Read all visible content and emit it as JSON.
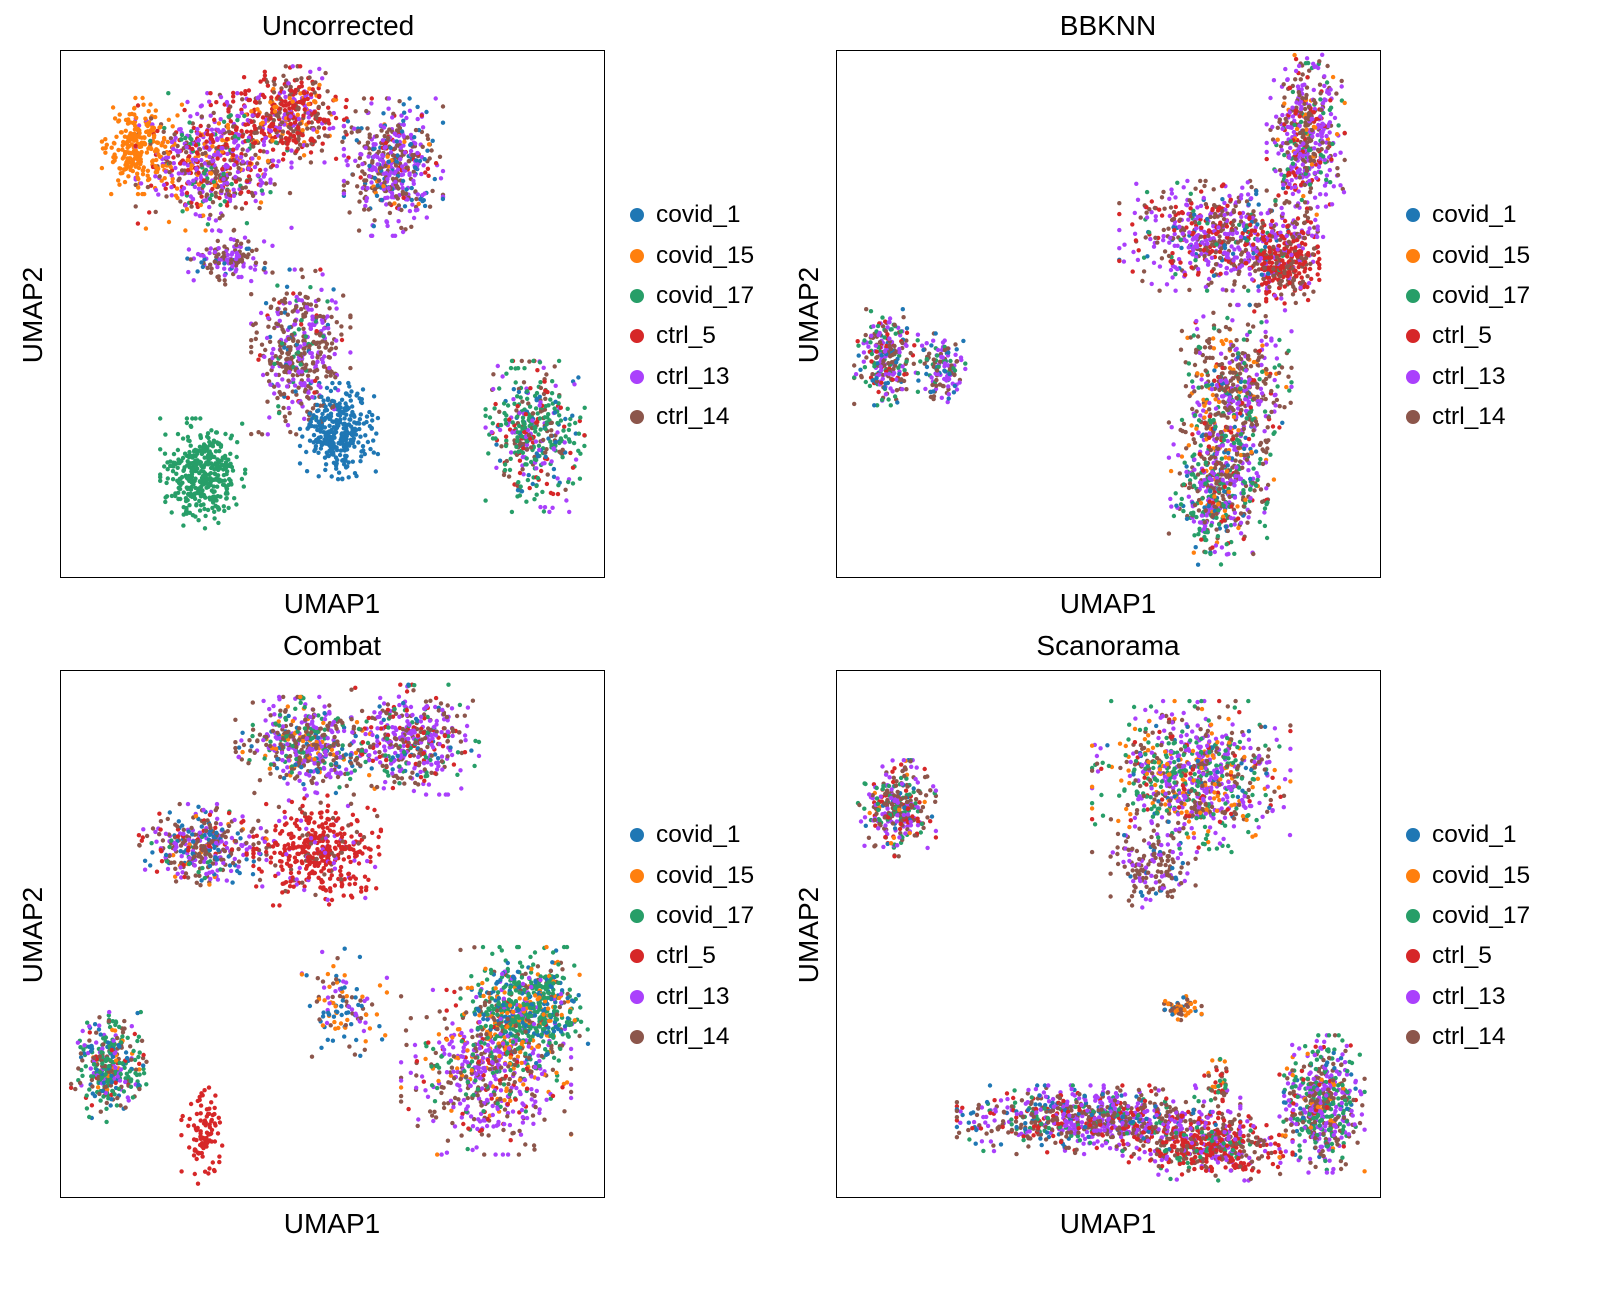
{
  "chart_data": [
    {
      "type": "scatter",
      "title": "Uncorrected",
      "xlabel": "UMAP1",
      "ylabel": "UMAP2",
      "legend": "right",
      "grid": false,
      "clusters": [
        {
          "cx": 0.14,
          "cy": 0.82,
          "rx": 0.05,
          "ry": 0.07,
          "n": 240,
          "mix": {
            "covid_15": 1
          }
        },
        {
          "cx": 0.26,
          "cy": 0.2,
          "rx": 0.06,
          "ry": 0.08,
          "n": 380,
          "mix": {
            "covid_17": 1
          }
        },
        {
          "cx": 0.51,
          "cy": 0.28,
          "rx": 0.055,
          "ry": 0.07,
          "n": 320,
          "mix": {
            "covid_1": 1
          }
        },
        {
          "cx": 0.44,
          "cy": 0.43,
          "rx": 0.07,
          "ry": 0.12,
          "n": 450,
          "mix": {
            "ctrl_14": 0.55,
            "ctrl_13": 0.3,
            "covid_1": 0.05,
            "ctrl_5": 0.05,
            "covid_17": 0.05
          }
        },
        {
          "cx": 0.31,
          "cy": 0.61,
          "rx": 0.06,
          "ry": 0.04,
          "n": 130,
          "mix": {
            "ctrl_13": 0.5,
            "ctrl_14": 0.4,
            "covid_1": 0.1
          }
        },
        {
          "cx": 0.28,
          "cy": 0.79,
          "rx": 0.11,
          "ry": 0.1,
          "n": 650,
          "mix": {
            "ctrl_13": 0.35,
            "ctrl_14": 0.25,
            "ctrl_5": 0.2,
            "covid_17": 0.1,
            "covid_15": 0.1
          }
        },
        {
          "cx": 0.42,
          "cy": 0.88,
          "rx": 0.08,
          "ry": 0.07,
          "n": 420,
          "mix": {
            "ctrl_5": 0.5,
            "ctrl_14": 0.25,
            "ctrl_13": 0.15,
            "covid_15": 0.1
          }
        },
        {
          "cx": 0.61,
          "cy": 0.78,
          "rx": 0.07,
          "ry": 0.1,
          "n": 480,
          "mix": {
            "ctrl_13": 0.4,
            "ctrl_14": 0.35,
            "covid_1": 0.15,
            "covid_15": 0.05,
            "ctrl_5": 0.05
          }
        },
        {
          "cx": 0.87,
          "cy": 0.27,
          "rx": 0.07,
          "ry": 0.11,
          "n": 420,
          "mix": {
            "covid_17": 0.4,
            "ctrl_14": 0.2,
            "ctrl_13": 0.15,
            "ctrl_5": 0.15,
            "covid_1": 0.1
          }
        }
      ]
    },
    {
      "type": "scatter",
      "title": "BBKNN",
      "xlabel": "UMAP1",
      "ylabel": "UMAP2",
      "legend": "right",
      "grid": false,
      "clusters": [
        {
          "cx": 0.09,
          "cy": 0.42,
          "rx": 0.045,
          "ry": 0.07,
          "n": 260,
          "mix": {
            "ctrl_14": 0.3,
            "ctrl_13": 0.25,
            "covid_17": 0.2,
            "ctrl_5": 0.15,
            "covid_1": 0.1
          }
        },
        {
          "cx": 0.19,
          "cy": 0.4,
          "rx": 0.035,
          "ry": 0.05,
          "n": 140,
          "mix": {
            "ctrl_13": 0.4,
            "ctrl_14": 0.3,
            "covid_17": 0.15,
            "covid_1": 0.15
          }
        },
        {
          "cx": 0.86,
          "cy": 0.83,
          "rx": 0.055,
          "ry": 0.14,
          "n": 520,
          "mix": {
            "ctrl_13": 0.4,
            "ctrl_14": 0.3,
            "ctrl_5": 0.15,
            "covid_17": 0.1,
            "covid_15": 0.05
          }
        },
        {
          "cx": 0.7,
          "cy": 0.65,
          "rx": 0.14,
          "ry": 0.08,
          "n": 650,
          "mix": {
            "ctrl_13": 0.4,
            "ctrl_14": 0.3,
            "ctrl_5": 0.2,
            "covid_17": 0.05,
            "covid_1": 0.05
          }
        },
        {
          "cx": 0.82,
          "cy": 0.6,
          "rx": 0.05,
          "ry": 0.06,
          "n": 300,
          "mix": {
            "ctrl_5": 0.6,
            "ctrl_14": 0.3,
            "ctrl_13": 0.1
          }
        },
        {
          "cx": 0.73,
          "cy": 0.35,
          "rx": 0.08,
          "ry": 0.13,
          "n": 550,
          "mix": {
            "ctrl_14": 0.4,
            "ctrl_13": 0.25,
            "covid_17": 0.15,
            "covid_15": 0.1,
            "covid_1": 0.05,
            "ctrl_5": 0.05
          }
        },
        {
          "cx": 0.7,
          "cy": 0.17,
          "rx": 0.07,
          "ry": 0.11,
          "n": 500,
          "mix": {
            "ctrl_14": 0.3,
            "covid_17": 0.25,
            "ctrl_13": 0.25,
            "covid_1": 0.1,
            "covid_15": 0.05,
            "ctrl_5": 0.05
          }
        }
      ]
    },
    {
      "type": "scatter",
      "title": "Combat",
      "xlabel": "UMAP1",
      "ylabel": "UMAP2",
      "legend": "right",
      "grid": false,
      "clusters": [
        {
          "cx": 0.09,
          "cy": 0.25,
          "rx": 0.055,
          "ry": 0.08,
          "n": 350,
          "mix": {
            "covid_17": 0.4,
            "ctrl_14": 0.2,
            "ctrl_13": 0.15,
            "covid_1": 0.15,
            "ctrl_5": 0.05,
            "covid_15": 0.05
          }
        },
        {
          "cx": 0.26,
          "cy": 0.12,
          "rx": 0.03,
          "ry": 0.07,
          "n": 100,
          "mix": {
            "ctrl_5": 1
          }
        },
        {
          "cx": 0.26,
          "cy": 0.67,
          "rx": 0.09,
          "ry": 0.06,
          "n": 380,
          "mix": {
            "ctrl_14": 0.4,
            "ctrl_13": 0.25,
            "covid_1": 0.15,
            "ctrl_5": 0.1,
            "covid_17": 0.05,
            "covid_15": 0.05
          }
        },
        {
          "cx": 0.47,
          "cy": 0.66,
          "rx": 0.09,
          "ry": 0.08,
          "n": 420,
          "mix": {
            "ctrl_5": 0.8,
            "ctrl_14": 0.1,
            "ctrl_13": 0.1
          }
        },
        {
          "cx": 0.45,
          "cy": 0.86,
          "rx": 0.1,
          "ry": 0.07,
          "n": 500,
          "mix": {
            "ctrl_13": 0.3,
            "ctrl_14": 0.3,
            "covid_17": 0.2,
            "covid_1": 0.1,
            "covid_15": 0.1
          }
        },
        {
          "cx": 0.65,
          "cy": 0.87,
          "rx": 0.09,
          "ry": 0.08,
          "n": 420,
          "mix": {
            "ctrl_13": 0.4,
            "ctrl_14": 0.25,
            "covid_17": 0.15,
            "ctrl_5": 0.15,
            "covid_1": 0.05
          }
        },
        {
          "cx": 0.52,
          "cy": 0.37,
          "rx": 0.06,
          "ry": 0.08,
          "n": 120,
          "mix": {
            "covid_1": 0.3,
            "covid_15": 0.25,
            "ctrl_14": 0.25,
            "ctrl_13": 0.2
          }
        },
        {
          "cx": 0.85,
          "cy": 0.36,
          "rx": 0.09,
          "ry": 0.09,
          "n": 650,
          "mix": {
            "covid_17": 0.5,
            "covid_1": 0.2,
            "covid_15": 0.15,
            "ctrl_14": 0.1,
            "ctrl_13": 0.05
          }
        },
        {
          "cx": 0.78,
          "cy": 0.24,
          "rx": 0.12,
          "ry": 0.12,
          "n": 600,
          "mix": {
            "ctrl_13": 0.4,
            "ctrl_14": 0.3,
            "ctrl_5": 0.1,
            "covid_15": 0.1,
            "covid_17": 0.1
          }
        }
      ]
    },
    {
      "type": "scatter",
      "title": "Scanorama",
      "xlabel": "UMAP1",
      "ylabel": "UMAP2",
      "legend": "right",
      "grid": false,
      "clusters": [
        {
          "cx": 0.11,
          "cy": 0.74,
          "rx": 0.055,
          "ry": 0.07,
          "n": 320,
          "mix": {
            "ctrl_14": 0.3,
            "ctrl_13": 0.25,
            "covid_17": 0.2,
            "ctrl_5": 0.15,
            "covid_15": 0.05,
            "covid_1": 0.05
          }
        },
        {
          "cx": 0.65,
          "cy": 0.8,
          "rx": 0.14,
          "ry": 0.11,
          "n": 850,
          "mix": {
            "ctrl_13": 0.3,
            "covid_17": 0.25,
            "ctrl_14": 0.2,
            "covid_15": 0.15,
            "covid_1": 0.05,
            "ctrl_5": 0.05
          }
        },
        {
          "cx": 0.58,
          "cy": 0.63,
          "rx": 0.06,
          "ry": 0.06,
          "n": 160,
          "mix": {
            "ctrl_14": 0.6,
            "ctrl_13": 0.3,
            "covid_1": 0.1
          }
        },
        {
          "cx": 0.63,
          "cy": 0.36,
          "rx": 0.03,
          "ry": 0.02,
          "n": 60,
          "mix": {
            "covid_15": 0.4,
            "covid_1": 0.3,
            "ctrl_14": 0.3
          }
        },
        {
          "cx": 0.7,
          "cy": 0.22,
          "rx": 0.02,
          "ry": 0.04,
          "n": 40,
          "mix": {
            "covid_17": 0.3,
            "ctrl_14": 0.3,
            "ctrl_5": 0.2,
            "covid_15": 0.2
          }
        },
        {
          "cx": 0.48,
          "cy": 0.15,
          "rx": 0.2,
          "ry": 0.05,
          "n": 900,
          "mix": {
            "ctrl_13": 0.35,
            "ctrl_14": 0.3,
            "ctrl_5": 0.15,
            "covid_1": 0.1,
            "covid_17": 0.1
          }
        },
        {
          "cx": 0.68,
          "cy": 0.1,
          "rx": 0.12,
          "ry": 0.05,
          "n": 500,
          "mix": {
            "ctrl_5": 0.45,
            "ctrl_14": 0.25,
            "ctrl_13": 0.2,
            "covid_17": 0.1
          }
        },
        {
          "cx": 0.89,
          "cy": 0.18,
          "rx": 0.06,
          "ry": 0.1,
          "n": 550,
          "mix": {
            "ctrl_13": 0.3,
            "covid_17": 0.3,
            "ctrl_14": 0.25,
            "covid_1": 0.05,
            "covid_15": 0.05,
            "ctrl_5": 0.05
          }
        }
      ]
    }
  ],
  "legend_entries": [
    {
      "label": "covid_1",
      "color": "#1f77b4"
    },
    {
      "label": "covid_15",
      "color": "#ff7f0e"
    },
    {
      "label": "covid_17",
      "color": "#279e68"
    },
    {
      "label": "ctrl_5",
      "color": "#d62728"
    },
    {
      "label": "ctrl_13",
      "color": "#aa40fc"
    },
    {
      "label": "ctrl_14",
      "color": "#8c564b"
    }
  ]
}
